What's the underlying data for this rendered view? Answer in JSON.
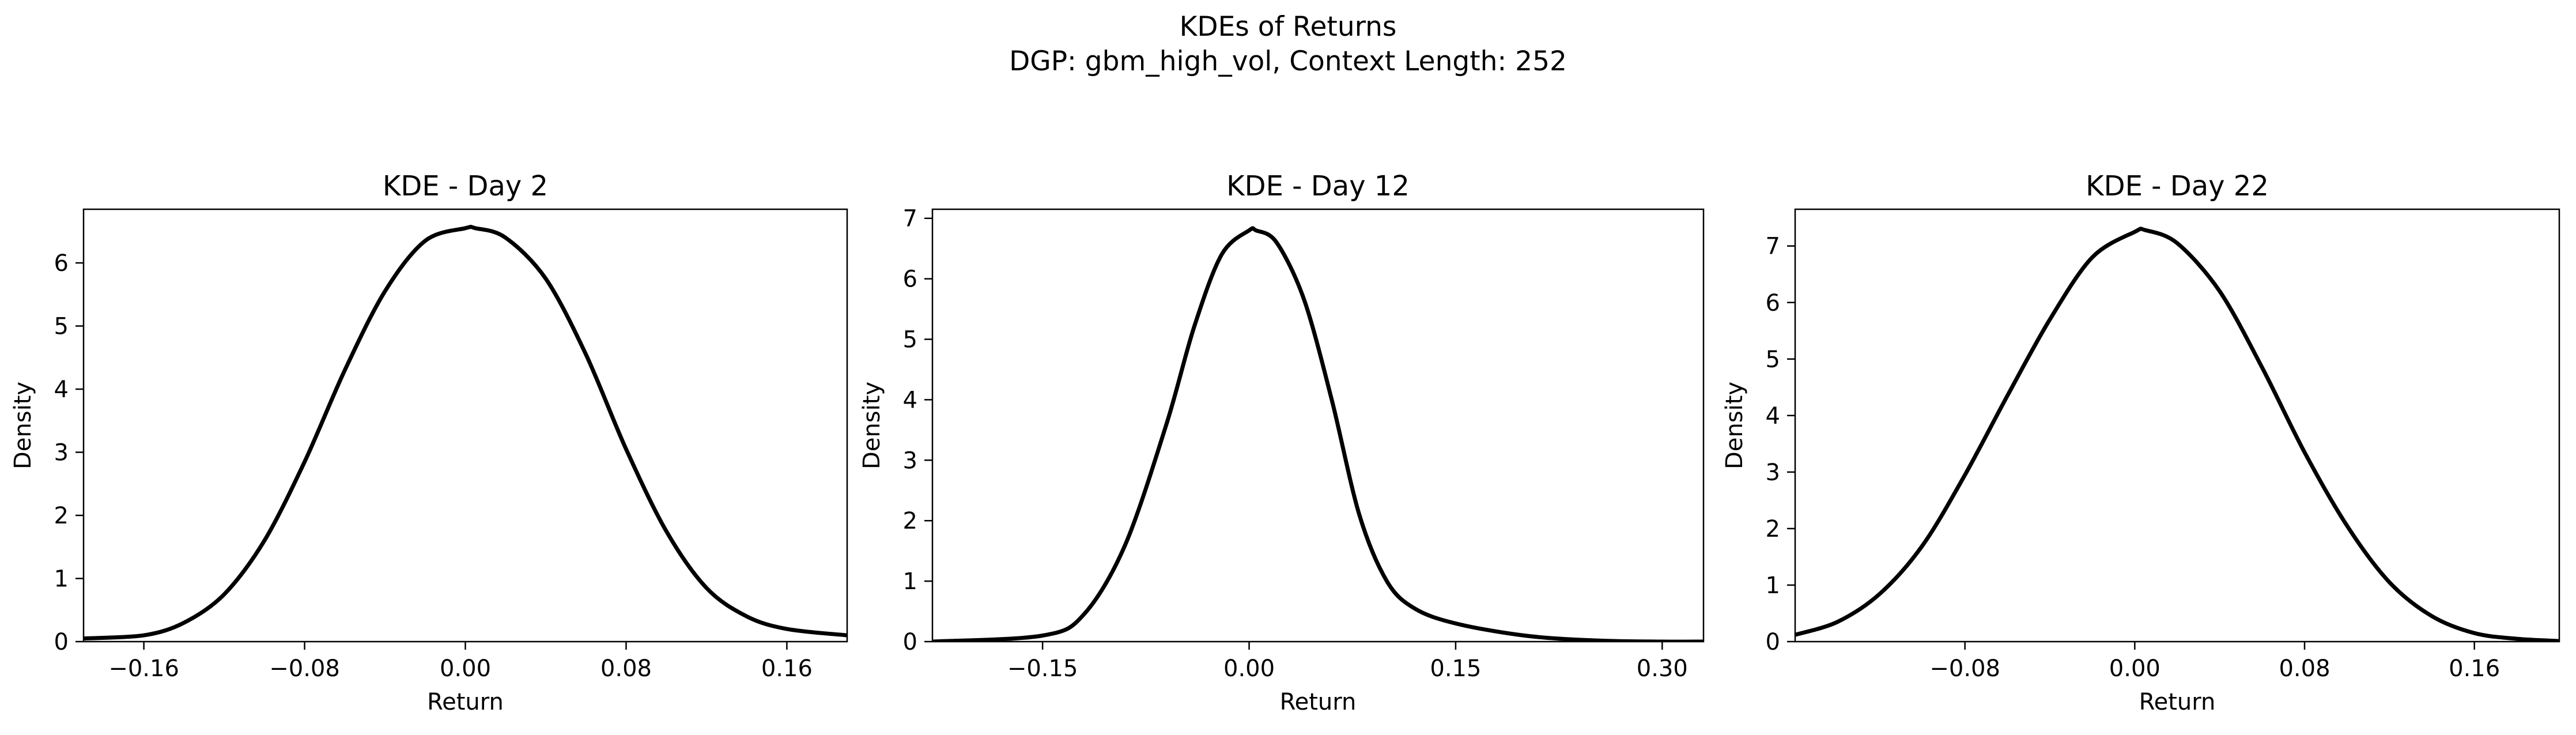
{
  "figure": {
    "title_line1": "KDEs of Returns",
    "title_line2": "DGP: gbm_high_vol, Context Length: 252"
  },
  "colors": {
    "line": "#000000",
    "axes": "#000000",
    "background": "#ffffff"
  },
  "chart_data": [
    {
      "type": "line",
      "title": "KDE - Day 2",
      "xlabel": "Return",
      "ylabel": "Density",
      "xlim": [
        -0.19,
        0.19
      ],
      "ylim": [
        0,
        6.85
      ],
      "xticks": [
        -0.16,
        -0.08,
        0.0,
        0.08,
        0.16
      ],
      "xtick_labels": [
        "−0.16",
        "−0.08",
        "0.00",
        "0.08",
        "0.16"
      ],
      "yticks": [
        0,
        1,
        2,
        3,
        4,
        5,
        6
      ],
      "ytick_labels": [
        "0",
        "1",
        "2",
        "3",
        "4",
        "5",
        "6"
      ],
      "grid": false,
      "series": [
        {
          "x": [
            -0.19,
            -0.16,
            -0.14,
            -0.12,
            -0.1,
            -0.08,
            -0.06,
            -0.04,
            -0.02,
            0.0,
            0.005,
            0.02,
            0.04,
            0.06,
            0.08,
            0.1,
            0.12,
            0.14,
            0.16,
            0.19
          ],
          "y": [
            0.05,
            0.1,
            0.3,
            0.75,
            1.6,
            2.85,
            4.3,
            5.55,
            6.35,
            6.55,
            6.55,
            6.4,
            5.75,
            4.55,
            3.05,
            1.75,
            0.85,
            0.4,
            0.2,
            0.1
          ]
        }
      ]
    },
    {
      "type": "line",
      "title": "KDE - Day 12",
      "xlabel": "Return",
      "ylabel": "Density",
      "xlim": [
        -0.23,
        0.33
      ],
      "ylim": [
        0,
        7.15
      ],
      "xticks": [
        -0.15,
        0.0,
        0.15,
        0.3
      ],
      "xtick_labels": [
        "−0.15",
        "0.00",
        "0.15",
        "0.30"
      ],
      "yticks": [
        0,
        1,
        2,
        3,
        4,
        5,
        6,
        7
      ],
      "ytick_labels": [
        "0",
        "1",
        "2",
        "3",
        "4",
        "5",
        "6",
        "7"
      ],
      "grid": false,
      "series": [
        {
          "x": [
            -0.23,
            -0.15,
            -0.12,
            -0.09,
            -0.06,
            -0.04,
            -0.02,
            0.0,
            0.005,
            0.02,
            0.04,
            0.06,
            0.08,
            0.1,
            0.12,
            0.15,
            0.2,
            0.25,
            0.3,
            0.33
          ],
          "y": [
            0.0,
            0.1,
            0.45,
            1.6,
            3.6,
            5.2,
            6.4,
            6.8,
            6.8,
            6.6,
            5.65,
            4.0,
            2.1,
            1.0,
            0.55,
            0.3,
            0.1,
            0.02,
            0.0,
            0.0
          ]
        }
      ]
    },
    {
      "type": "line",
      "title": "KDE - Day 22",
      "xlabel": "Return",
      "ylabel": "Density",
      "xlim": [
        -0.16,
        0.2
      ],
      "ylim": [
        0,
        7.65
      ],
      "xticks": [
        -0.08,
        0.0,
        0.08,
        0.16
      ],
      "xtick_labels": [
        "−0.08",
        "0.00",
        "0.08",
        "0.16"
      ],
      "yticks": [
        0,
        1,
        2,
        3,
        4,
        5,
        6,
        7
      ],
      "ytick_labels": [
        "0",
        "1",
        "2",
        "3",
        "4",
        "5",
        "6",
        "7"
      ],
      "grid": false,
      "series": [
        {
          "x": [
            -0.16,
            -0.14,
            -0.12,
            -0.1,
            -0.08,
            -0.06,
            -0.04,
            -0.02,
            0.0,
            0.005,
            0.02,
            0.04,
            0.06,
            0.08,
            0.1,
            0.12,
            0.14,
            0.16,
            0.18,
            0.2
          ],
          "y": [
            0.12,
            0.35,
            0.85,
            1.7,
            2.95,
            4.35,
            5.7,
            6.8,
            7.25,
            7.28,
            7.05,
            6.2,
            4.85,
            3.35,
            2.05,
            1.05,
            0.45,
            0.15,
            0.05,
            0.01
          ]
        }
      ]
    }
  ]
}
